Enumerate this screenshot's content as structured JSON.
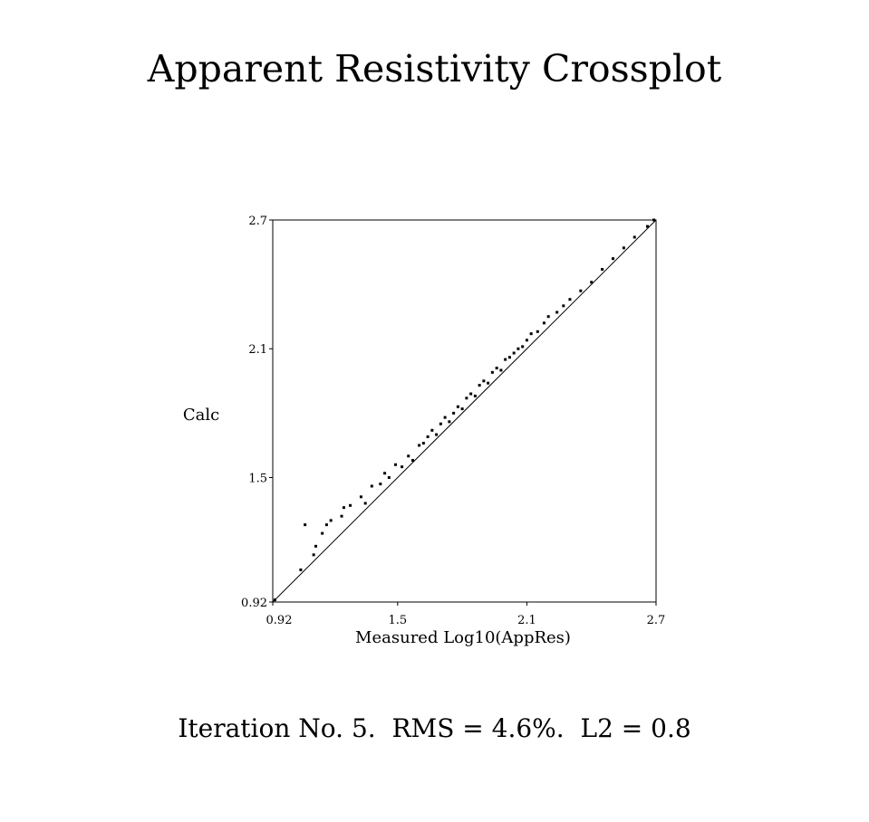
{
  "chart_data": {
    "type": "scatter",
    "title": "Apparent Resistivity Crossplot",
    "xlabel": "Measured Log10(AppRes)",
    "ylabel": "Calc",
    "xlim": [
      0.92,
      2.7
    ],
    "ylim": [
      0.92,
      2.7
    ],
    "x_ticks": [
      "0.92",
      "1.5",
      "2.1",
      "2.7"
    ],
    "y_ticks": [
      "0.92",
      "1.5",
      "2.1",
      "2.7"
    ],
    "reference_line": "y = x",
    "grid": false,
    "points": [
      [
        0.93,
        0.93
      ],
      [
        1.07,
        1.28
      ],
      [
        1.05,
        1.07
      ],
      [
        1.11,
        1.14
      ],
      [
        1.12,
        1.18
      ],
      [
        1.15,
        1.24
      ],
      [
        1.17,
        1.28
      ],
      [
        1.19,
        1.3
      ],
      [
        1.24,
        1.32
      ],
      [
        1.25,
        1.36
      ],
      [
        1.28,
        1.37
      ],
      [
        1.33,
        1.41
      ],
      [
        1.35,
        1.38
      ],
      [
        1.38,
        1.46
      ],
      [
        1.42,
        1.47
      ],
      [
        1.44,
        1.52
      ],
      [
        1.46,
        1.5
      ],
      [
        1.49,
        1.56
      ],
      [
        1.52,
        1.55
      ],
      [
        1.55,
        1.6
      ],
      [
        1.57,
        1.58
      ],
      [
        1.6,
        1.65
      ],
      [
        1.62,
        1.66
      ],
      [
        1.64,
        1.69
      ],
      [
        1.66,
        1.72
      ],
      [
        1.68,
        1.7
      ],
      [
        1.7,
        1.75
      ],
      [
        1.72,
        1.78
      ],
      [
        1.74,
        1.76
      ],
      [
        1.76,
        1.8
      ],
      [
        1.78,
        1.83
      ],
      [
        1.8,
        1.82
      ],
      [
        1.82,
        1.87
      ],
      [
        1.84,
        1.89
      ],
      [
        1.86,
        1.88
      ],
      [
        1.88,
        1.93
      ],
      [
        1.9,
        1.95
      ],
      [
        1.92,
        1.94
      ],
      [
        1.94,
        1.99
      ],
      [
        1.96,
        2.01
      ],
      [
        1.98,
        2.0
      ],
      [
        2.0,
        2.05
      ],
      [
        2.02,
        2.06
      ],
      [
        2.04,
        2.08
      ],
      [
        2.06,
        2.1
      ],
      [
        2.08,
        2.11
      ],
      [
        2.1,
        2.14
      ],
      [
        2.12,
        2.17
      ],
      [
        2.15,
        2.18
      ],
      [
        2.18,
        2.22
      ],
      [
        2.2,
        2.25
      ],
      [
        2.24,
        2.27
      ],
      [
        2.27,
        2.3
      ],
      [
        2.3,
        2.33
      ],
      [
        2.35,
        2.37
      ],
      [
        2.4,
        2.41
      ],
      [
        2.45,
        2.47
      ],
      [
        2.5,
        2.52
      ],
      [
        2.55,
        2.57
      ],
      [
        2.6,
        2.62
      ],
      [
        2.66,
        2.67
      ],
      [
        2.69,
        2.7
      ]
    ]
  },
  "footer": {
    "text": "Iteration No. 5.  RMS = 4.6%.  L2 = 0.8"
  }
}
